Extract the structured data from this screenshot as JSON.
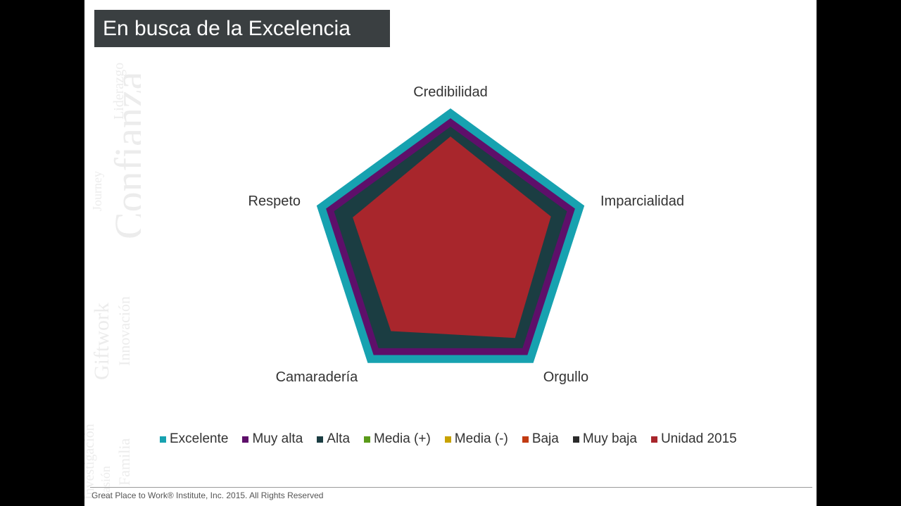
{
  "slide": {
    "title": "En busca de la Excelencia",
    "footer": "Great Place to Work® Institute, Inc. 2015. All Rights Reserved",
    "watermark": [
      "Confianza",
      "Liderazgo",
      "Journey",
      "Giftwork",
      "Innovación",
      "Investigación",
      "Familia",
      "Pasión"
    ]
  },
  "chart_data": {
    "type": "radar",
    "categories": [
      "Credibilidad",
      "Imparcialidad",
      "Orgullo",
      "Camaradería",
      "Respeto"
    ],
    "rlim": [
      0,
      100
    ],
    "series": [
      {
        "name": "Excelente",
        "color": "#17a2b0",
        "values": [
          100,
          100,
          100,
          100,
          100
        ]
      },
      {
        "name": "Muy alta",
        "color": "#5e0f6a",
        "values": [
          93,
          93,
          93,
          93,
          93
        ]
      },
      {
        "name": "Alta",
        "color": "#1b3d42",
        "values": [
          87,
          87,
          87,
          87,
          87
        ]
      },
      {
        "name": "Media (+)",
        "color": "#5a9a1a",
        "values": [
          0,
          0,
          0,
          0,
          0
        ]
      },
      {
        "name": "Media (-)",
        "color": "#c8a200",
        "values": [
          0,
          0,
          0,
          0,
          0
        ]
      },
      {
        "name": "Baja",
        "color": "#c23b12",
        "values": [
          0,
          0,
          0,
          0,
          0
        ]
      },
      {
        "name": "Muy baja",
        "color": "#2b2b2b",
        "values": [
          0,
          0,
          0,
          0,
          0
        ]
      },
      {
        "name": "Unidad 2015",
        "color": "#a8262c",
        "values": [
          80,
          75,
          78,
          72,
          73
        ]
      }
    ],
    "legend_position": "bottom",
    "grid": false
  }
}
